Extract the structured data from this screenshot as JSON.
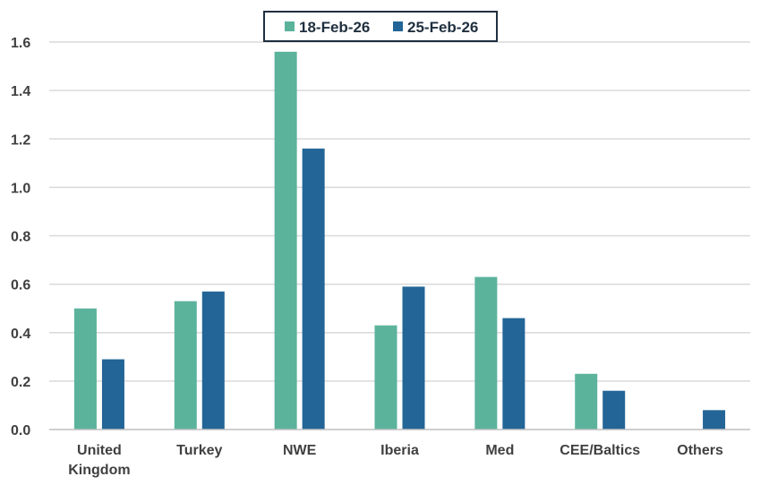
{
  "chart_data": {
    "type": "bar",
    "categories": [
      [
        "United",
        "Kingdom"
      ],
      [
        "Turkey"
      ],
      [
        "NWE"
      ],
      [
        "Iberia"
      ],
      [
        "Med"
      ],
      [
        "CEE/Baltics"
      ],
      [
        "Others"
      ]
    ],
    "series": [
      {
        "name": "18-Feb-26",
        "color": "#5bb39c",
        "values": [
          0.5,
          0.53,
          1.56,
          0.43,
          0.63,
          0.23,
          0.0
        ]
      },
      {
        "name": "25-Feb-26",
        "color": "#236596",
        "values": [
          0.29,
          0.57,
          1.16,
          0.59,
          0.46,
          0.16,
          0.08
        ]
      }
    ],
    "ylim": [
      0,
      1.6
    ],
    "yticks": [
      "0.0",
      "0.2",
      "0.4",
      "0.6",
      "0.8",
      "1.0",
      "1.2",
      "1.4",
      "1.6"
    ],
    "grid": true,
    "legend_position": "top-center",
    "title": "",
    "xlabel": "",
    "ylabel": ""
  }
}
